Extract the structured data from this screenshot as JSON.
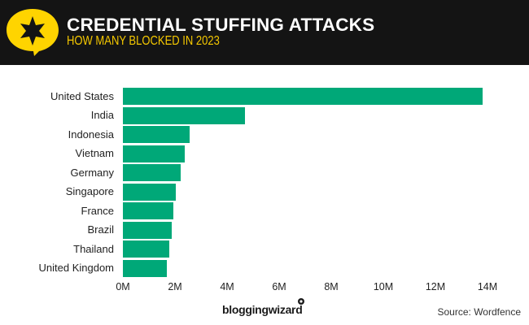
{
  "header": {
    "title": "CREDENTIAL STUFFING ATTACKS",
    "subtitle": "HOW MANY BLOCKED IN 2023",
    "logo_icon": "star-speech-bubble-icon"
  },
  "colors": {
    "header_bg": "#141414",
    "accent_yellow": "#FFD400",
    "bar_green": "#00A878",
    "title_text": "#FFFFFF"
  },
  "footer": {
    "brand": "bloggingwizard",
    "source": "Source: Wordfence"
  },
  "chart_data": {
    "type": "bar",
    "orientation": "horizontal",
    "title": "CREDENTIAL STUFFING ATTACKS",
    "subtitle": "HOW MANY BLOCKED IN 2023",
    "xlabel": "",
    "ylabel": "",
    "categories": [
      "United States",
      "India",
      "Indonesia",
      "Vietnam",
      "Germany",
      "Singapore",
      "France",
      "Brazil",
      "Thailand",
      "United Kingdom"
    ],
    "values": [
      13.8,
      4.7,
      2.57,
      2.38,
      2.22,
      2.03,
      1.94,
      1.88,
      1.78,
      1.69
    ],
    "unit": "M",
    "xlim": [
      0,
      14
    ],
    "xticks": [
      "0M",
      "2M",
      "4M",
      "6M",
      "8M",
      "10M",
      "12M",
      "14M"
    ],
    "grid": false,
    "legend": null,
    "source": "Source: Wordfence"
  }
}
